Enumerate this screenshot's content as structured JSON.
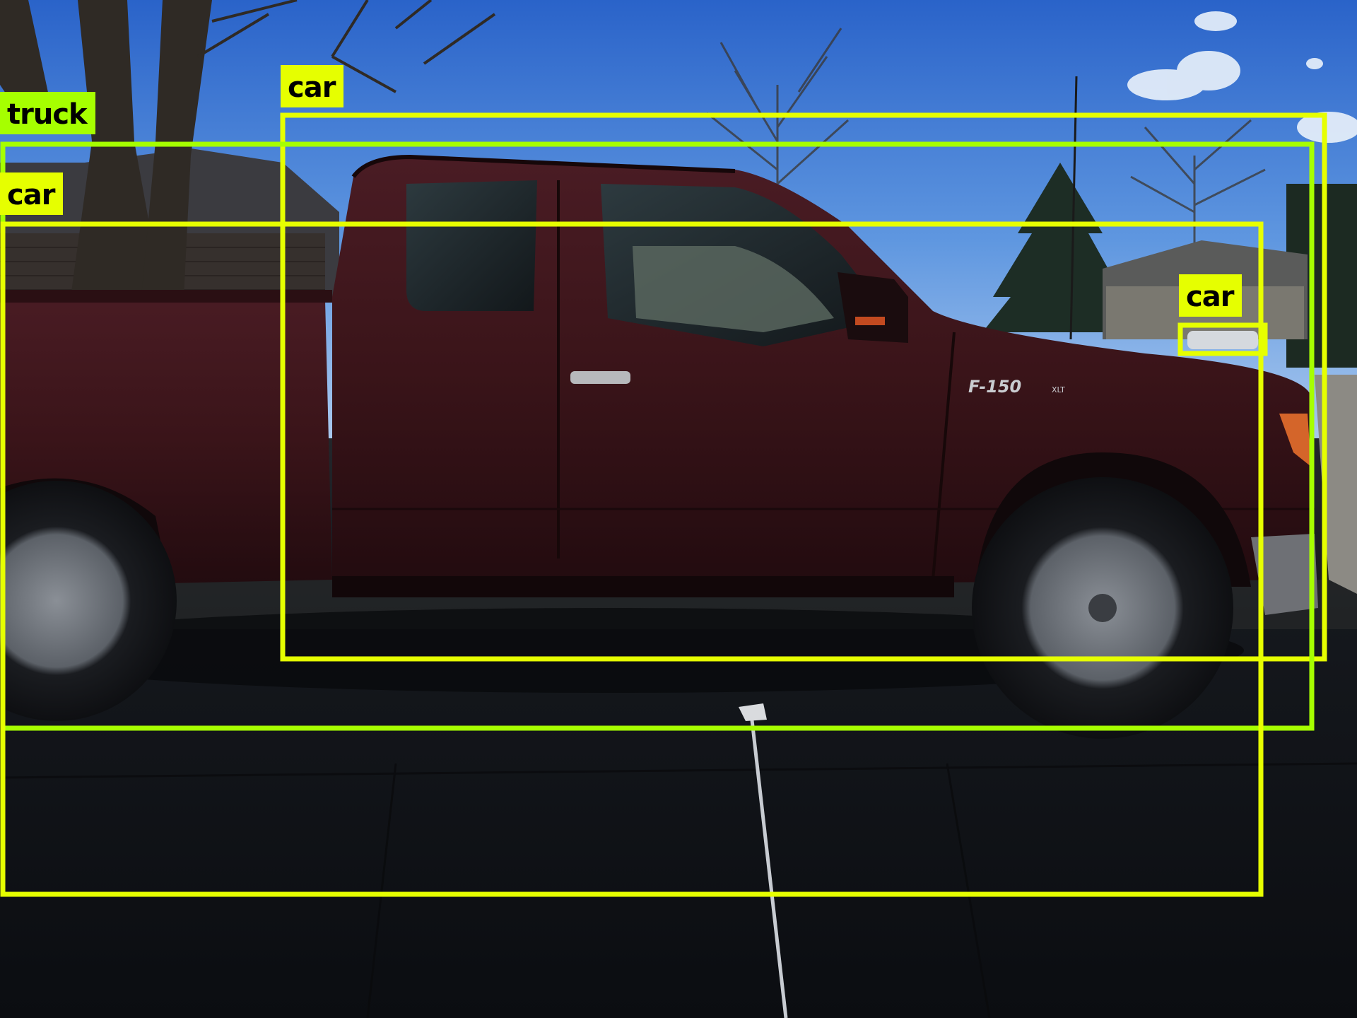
{
  "detections": [
    {
      "label": "car",
      "color": "#e6ff00"
    },
    {
      "label": "truck",
      "color": "#a6ff00"
    },
    {
      "label": "car",
      "color": "#e6ff00"
    },
    {
      "label": "car",
      "color": "#e6ff00"
    }
  ],
  "truck_badge": "F-150",
  "truck_badge_trim": "XLT"
}
